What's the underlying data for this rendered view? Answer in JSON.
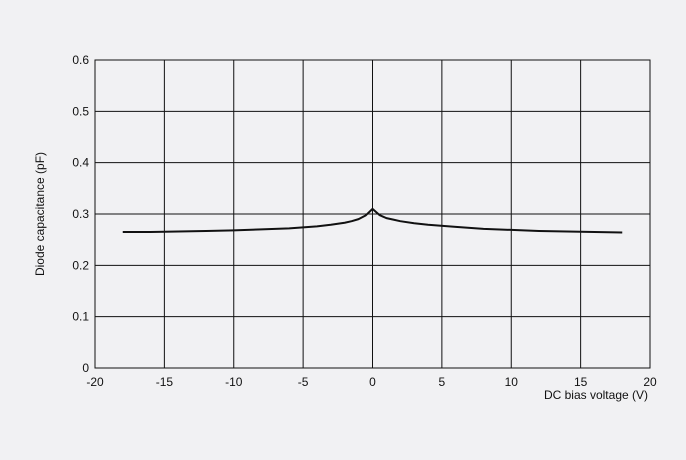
{
  "chart_data": {
    "type": "line",
    "title": "",
    "xlabel": "DC bias voltage (V)",
    "ylabel": "Diode capacitance (pF)",
    "xlim": [
      -20,
      20
    ],
    "ylim": [
      0,
      0.6
    ],
    "x_ticks": [
      -20,
      -15,
      -10,
      -5,
      0,
      5,
      10,
      15,
      20
    ],
    "y_ticks": [
      0,
      0.1,
      0.2,
      0.3,
      0.4,
      0.5,
      0.6
    ],
    "x_tick_labels": [
      "-20",
      "-15",
      "-10",
      "-5",
      "0",
      "5",
      "10",
      "15",
      "20"
    ],
    "y_tick_labels": [
      "0",
      "0.1",
      "0.2",
      "0.3",
      "0.4",
      "0.5",
      "0.6"
    ],
    "grid": true,
    "legend": "none",
    "series": [
      {
        "x": [
          -18,
          -16,
          -14,
          -12,
          -10,
          -8,
          -6,
          -4,
          -3,
          -2,
          -1.5,
          -1,
          -0.5,
          0,
          0.5,
          1,
          1.5,
          2,
          3,
          4,
          6,
          8,
          10,
          12,
          14,
          16,
          18
        ],
        "y": [
          0.265,
          0.265,
          0.266,
          0.267,
          0.268,
          0.27,
          0.272,
          0.276,
          0.279,
          0.283,
          0.286,
          0.29,
          0.297,
          0.31,
          0.298,
          0.292,
          0.289,
          0.286,
          0.282,
          0.279,
          0.275,
          0.271,
          0.269,
          0.267,
          0.266,
          0.265,
          0.264
        ],
        "color": "#111111"
      }
    ]
  }
}
